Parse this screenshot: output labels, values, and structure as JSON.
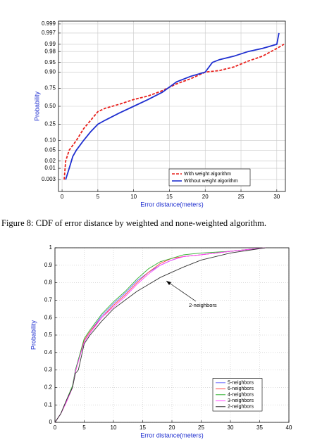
{
  "chart_data": [
    {
      "type": "line",
      "yscale": "normal-probability",
      "grid": true,
      "ylabel": "Probability",
      "xlabel": "Error distance(meters)",
      "xlim": [
        -0.5,
        31.2
      ],
      "xticks": [
        0,
        5,
        10,
        15,
        20,
        25,
        30
      ],
      "ylim": [
        0.0007,
        0.9993
      ],
      "yticks": [
        0.003,
        0.01,
        0.02,
        0.05,
        {
          "value": 0.1,
          "label": "0.10"
        },
        0.25,
        {
          "value": 0.5,
          "label": "0.50"
        },
        0.75,
        {
          "value": 0.9,
          "label": "0.90"
        },
        0.95,
        0.98,
        0.99,
        0.997,
        0.999
      ],
      "legend": "lower right",
      "series": [
        {
          "name": "With weight algorithm",
          "color": "#e8201c",
          "line_style": "dashed",
          "x": [
            0.3,
            0.5,
            1,
            2,
            3,
            4,
            5,
            6,
            8,
            10,
            12,
            14,
            16,
            18,
            20,
            22,
            24,
            26,
            28,
            30,
            31
          ],
          "values": [
            0.003,
            0.02,
            0.05,
            0.1,
            0.2,
            0.3,
            0.42,
            0.47,
            0.53,
            0.6,
            0.65,
            0.72,
            0.8,
            0.85,
            0.9,
            0.91,
            0.93,
            0.955,
            0.97,
            0.985,
            0.99
          ]
        },
        {
          "name": "Without weight algorithm",
          "color": "#1f2fd0",
          "line_style": "solid",
          "x": [
            0.5,
            1,
            1.5,
            2,
            3,
            4,
            5,
            6,
            8,
            10,
            12,
            14,
            16,
            18,
            20,
            21,
            22,
            24,
            26,
            28,
            30,
            30.3
          ],
          "values": [
            0.003,
            0.01,
            0.03,
            0.05,
            0.1,
            0.17,
            0.25,
            0.3,
            0.4,
            0.5,
            0.6,
            0.7,
            0.82,
            0.87,
            0.9,
            0.95,
            0.96,
            0.97,
            0.98,
            0.985,
            0.99,
            0.997
          ]
        }
      ]
    },
    {
      "type": "line",
      "grid": true,
      "grid_style": "dotted",
      "ylabel": "Probability",
      "xlabel": "Error distance(meters)",
      "xlim": [
        0,
        40
      ],
      "xticks": [
        0,
        5,
        10,
        15,
        20,
        25,
        30,
        35,
        40
      ],
      "ylim": [
        0,
        1
      ],
      "yticks": [
        0,
        0.1,
        0.2,
        0.3,
        0.4,
        0.5,
        0.6,
        0.7,
        0.8,
        0.9,
        1
      ],
      "legend": "lower right",
      "annotation": "2-neighbors",
      "x": [
        0,
        1,
        2,
        3,
        3.5,
        4,
        5,
        6,
        8,
        10,
        12,
        14,
        16,
        18,
        20,
        22,
        25,
        30,
        36
      ],
      "series": [
        {
          "name": "5-neighbors",
          "color": "#6a6aff",
          "values": [
            0,
            0.05,
            0.12,
            0.2,
            0.3,
            0.36,
            0.47,
            0.52,
            0.61,
            0.68,
            0.74,
            0.81,
            0.86,
            0.9,
            0.93,
            0.95,
            0.96,
            0.98,
            1
          ]
        },
        {
          "name": "6-neighbors",
          "color": "#ff4040",
          "values": [
            0,
            0.05,
            0.12,
            0.2,
            0.29,
            0.35,
            0.47,
            0.52,
            0.6,
            0.67,
            0.73,
            0.8,
            0.86,
            0.91,
            0.94,
            0.95,
            0.96,
            0.98,
            1
          ]
        },
        {
          "name": "4-neighbors",
          "color": "#30b030",
          "values": [
            0,
            0.05,
            0.13,
            0.21,
            0.3,
            0.36,
            0.48,
            0.53,
            0.62,
            0.69,
            0.75,
            0.82,
            0.88,
            0.92,
            0.94,
            0.96,
            0.97,
            0.98,
            1
          ]
        },
        {
          "name": "3-neighbors",
          "color": "#ff40ff",
          "values": [
            0,
            0.05,
            0.12,
            0.2,
            0.29,
            0.35,
            0.46,
            0.51,
            0.6,
            0.66,
            0.72,
            0.79,
            0.85,
            0.9,
            0.93,
            0.95,
            0.96,
            0.98,
            1
          ]
        },
        {
          "name": "2-neighbors",
          "color": "#333333",
          "values": [
            0,
            0.05,
            0.13,
            0.2,
            0.28,
            0.3,
            0.45,
            0.5,
            0.58,
            0.65,
            0.7,
            0.75,
            0.79,
            0.83,
            0.86,
            0.89,
            0.93,
            0.97,
            1
          ]
        }
      ]
    }
  ],
  "caption": "Figure 8: CDF of error distance by weighted and none-weighted algorithm."
}
